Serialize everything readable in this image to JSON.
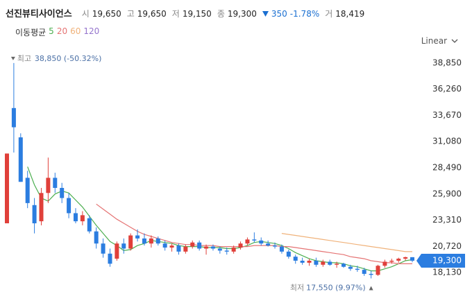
{
  "chart_data": {
    "type": "candlestick",
    "name": "선진뷰티사이언스",
    "quote": [
      {
        "label": "시",
        "value": "19,650"
      },
      {
        "label": "고",
        "value": "19,650"
      },
      {
        "label": "저",
        "value": "19,150"
      },
      {
        "label": "종",
        "value": "19,300"
      }
    ],
    "change": "350",
    "change_pct": "-1.78%",
    "volume_label": "거",
    "volume": "18,419",
    "ma_title": "이동평균",
    "scale_mode": "Linear",
    "up_color": "#e0403a",
    "down_color": "#2b7de0",
    "high_annotation": {
      "label": "최고",
      "text": "38,850 (-50.32%)"
    },
    "low_annotation": {
      "label": "최저",
      "text": "17,550 (9.97%)"
    },
    "ylim": [
      16830,
      39600
    ],
    "yticks": [
      {
        "value": 38850,
        "label": "38,850"
      },
      {
        "value": 36260,
        "label": "36,260"
      },
      {
        "value": 33670,
        "label": "33,670"
      },
      {
        "value": 31080,
        "label": "31,080"
      },
      {
        "value": 28490,
        "label": "28,490"
      },
      {
        "value": 25900,
        "label": "25,900"
      },
      {
        "value": 23310,
        "label": "23,310"
      },
      {
        "value": 20720,
        "label": "20,720"
      },
      {
        "value": 18130,
        "label": "18,130"
      }
    ],
    "candles": [
      [
        23000,
        29900,
        23000,
        29900
      ],
      [
        34400,
        38850,
        30000,
        32500
      ],
      [
        31500,
        31900,
        27100,
        27100
      ],
      [
        27500,
        28200,
        24500,
        25000
      ],
      [
        24800,
        25500,
        22000,
        23000
      ],
      [
        23200,
        26500,
        22800,
        26000
      ],
      [
        26000,
        29500,
        25000,
        27500
      ],
      [
        27500,
        28000,
        26000,
        26500
      ],
      [
        26500,
        27000,
        25000,
        25500
      ],
      [
        25500,
        26000,
        23500,
        24000
      ],
      [
        24000,
        24500,
        23000,
        23200
      ],
      [
        23200,
        24200,
        22800,
        23800
      ],
      [
        23500,
        23800,
        22000,
        22200
      ],
      [
        22200,
        22600,
        20500,
        21000
      ],
      [
        21000,
        21500,
        19600,
        20000
      ],
      [
        20000,
        20500,
        18700,
        19000
      ],
      [
        19500,
        21200,
        19300,
        21000
      ],
      [
        21000,
        21500,
        20000,
        20500
      ],
      [
        20500,
        22000,
        20300,
        21800
      ],
      [
        21800,
        22400,
        21200,
        21500
      ],
      [
        21500,
        22000,
        20800,
        21000
      ],
      [
        21000,
        21800,
        20600,
        21500
      ],
      [
        21500,
        21700,
        20800,
        21000
      ],
      [
        21000,
        21300,
        20300,
        20600
      ],
      [
        20600,
        21000,
        20200,
        20800
      ],
      [
        20800,
        21000,
        19900,
        20200
      ],
      [
        20200,
        20900,
        20000,
        20700
      ],
      [
        20700,
        21300,
        20500,
        21100
      ],
      [
        21100,
        21300,
        20300,
        20500
      ],
      [
        20500,
        20900,
        19900,
        20700
      ],
      [
        20700,
        20900,
        20300,
        20500
      ],
      [
        20500,
        20700,
        20000,
        20300
      ],
      [
        20300,
        20600,
        19900,
        20200
      ],
      [
        20200,
        20800,
        20000,
        20600
      ],
      [
        20600,
        21200,
        20400,
        21000
      ],
      [
        21000,
        21600,
        20800,
        21400
      ],
      [
        21400,
        22100,
        21100,
        21300
      ],
      [
        21300,
        21600,
        20800,
        21000
      ],
      [
        21000,
        21300,
        20700,
        20800
      ],
      [
        20800,
        21100,
        20500,
        20700
      ],
      [
        20700,
        20900,
        20000,
        20200
      ],
      [
        20200,
        20400,
        19500,
        19700
      ],
      [
        19700,
        19900,
        19000,
        19300
      ],
      [
        19300,
        19600,
        18900,
        19100
      ],
      [
        19100,
        19500,
        18800,
        19300
      ],
      [
        19300,
        19600,
        18700,
        18900
      ],
      [
        18900,
        19400,
        18700,
        19200
      ],
      [
        19200,
        19400,
        18800,
        18900
      ],
      [
        18900,
        19200,
        18600,
        19000
      ],
      [
        19000,
        19100,
        18600,
        18700
      ],
      [
        18700,
        18900,
        18300,
        18500
      ],
      [
        18500,
        18800,
        18200,
        18400
      ],
      [
        18400,
        18600,
        17800,
        18000
      ],
      [
        18000,
        18300,
        17550,
        17900
      ],
      [
        17900,
        18900,
        17800,
        18800
      ],
      [
        18800,
        19400,
        18600,
        19200
      ],
      [
        19200,
        19500,
        19000,
        19300
      ],
      [
        19300,
        19600,
        19100,
        19500
      ],
      [
        19500,
        19700,
        19300,
        19650
      ],
      [
        19650,
        19650,
        19150,
        19300
      ]
    ],
    "series": [
      {
        "name": "5",
        "color": "#4caf50",
        "values": [
          null,
          null,
          null,
          28600,
          26800,
          25500,
          25200,
          25900,
          26200,
          26000,
          25300,
          24600,
          23700,
          22800,
          22000,
          21200,
          20800,
          20300,
          20400,
          20800,
          21000,
          21300,
          21200,
          21100,
          21000,
          20800,
          20700,
          20700,
          20700,
          20600,
          20600,
          20600,
          20500,
          20500,
          20600,
          20800,
          21100,
          21200,
          21100,
          21000,
          20800,
          20500,
          20100,
          19800,
          19500,
          19300,
          19200,
          19100,
          19100,
          19000,
          18800,
          18700,
          18500,
          18300,
          18300,
          18500,
          18700,
          19000,
          19300,
          19400
        ]
      },
      {
        "name": "20",
        "color": "#e57373",
        "values": [
          null,
          null,
          null,
          null,
          null,
          null,
          null,
          null,
          null,
          null,
          null,
          null,
          null,
          24900,
          24400,
          23900,
          23400,
          23000,
          22600,
          22200,
          21900,
          21700,
          21500,
          21300,
          21100,
          21000,
          20900,
          20900,
          20800,
          20800,
          20800,
          20700,
          20700,
          20700,
          20700,
          20700,
          20800,
          20800,
          20800,
          20800,
          20700,
          20700,
          20600,
          20500,
          20400,
          20300,
          20200,
          20100,
          20000,
          19900,
          19700,
          19600,
          19500,
          19300,
          19200,
          19100,
          19100,
          19000,
          19000,
          19000
        ]
      },
      {
        "name": "60",
        "color": "#f0b27a",
        "values": [
          null,
          null,
          null,
          null,
          null,
          null,
          null,
          null,
          null,
          null,
          null,
          null,
          null,
          null,
          null,
          null,
          null,
          null,
          null,
          null,
          null,
          null,
          null,
          null,
          null,
          null,
          null,
          null,
          null,
          null,
          null,
          null,
          null,
          null,
          null,
          null,
          null,
          null,
          null,
          null,
          22000,
          21900,
          21800,
          21700,
          21600,
          21500,
          21400,
          21300,
          21200,
          21100,
          21000,
          20900,
          20800,
          20700,
          20600,
          20500,
          20400,
          20300,
          20200,
          20200
        ]
      },
      {
        "name": "120",
        "color": "#9575cd",
        "values": [
          null,
          null,
          null,
          null,
          null,
          null,
          null,
          null,
          null,
          null,
          null,
          null,
          null,
          null,
          null,
          null,
          null,
          null,
          null,
          null,
          null,
          null,
          null,
          null,
          null,
          null,
          null,
          null,
          null,
          null,
          null,
          null,
          null,
          null,
          null,
          null,
          null,
          null,
          null,
          null,
          null,
          null,
          null,
          null,
          null,
          null,
          null,
          null,
          null,
          null,
          null,
          null,
          null,
          null,
          null,
          null,
          null,
          null,
          null,
          null
        ]
      }
    ]
  }
}
